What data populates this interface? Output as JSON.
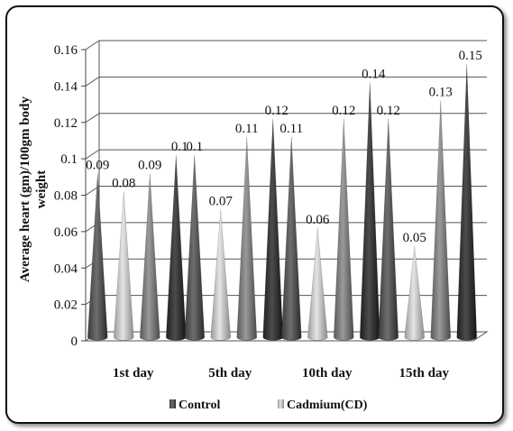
{
  "chart_data": {
    "type": "bar",
    "style": "3d-cone",
    "ylabel": "Average heart (gm)/100gm body weight",
    "ylim": [
      0,
      0.16
    ],
    "yticks": [
      "0",
      "0.02",
      "0.04",
      "0.06",
      "0.08",
      "0.1",
      "0.12",
      "0.14",
      "0.16"
    ],
    "categories": [
      "1st day",
      "5th day",
      "10th day",
      "15th day"
    ],
    "series": [
      {
        "name": "Control",
        "color": "#555555",
        "values": [
          0.09,
          0.1,
          0.11,
          0.12
        ],
        "labels": [
          "0.09",
          "0.1",
          "0.11",
          "0.12"
        ]
      },
      {
        "name": "Cadmium(CD)",
        "color": "#bbbbbb",
        "values": [
          0.08,
          0.07,
          0.06,
          0.05
        ],
        "labels": [
          "0.08",
          "0.07",
          "0.06",
          "0.05"
        ]
      },
      {
        "name": "",
        "color": "#777777",
        "values": [
          0.09,
          0.11,
          0.12,
          0.13
        ],
        "labels": [
          "0.09",
          "0.11",
          "0.12",
          "0.13"
        ]
      },
      {
        "name": "",
        "color": "#333333",
        "values": [
          0.1,
          0.12,
          0.14,
          0.15
        ],
        "labels": [
          "0.1",
          "0.12",
          "0.14",
          "0.15"
        ]
      }
    ],
    "legend_position": "bottom",
    "grid": true
  }
}
